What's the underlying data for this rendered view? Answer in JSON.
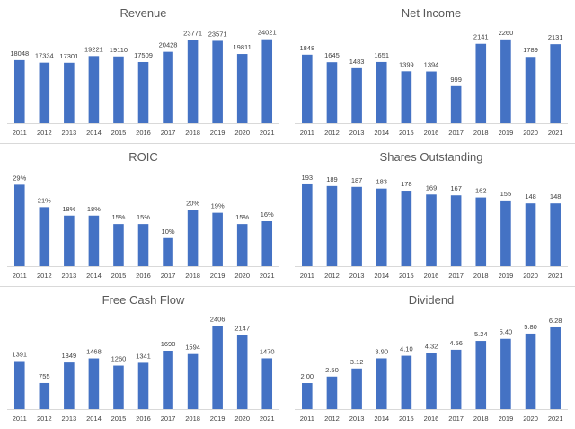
{
  "chart_data": [
    {
      "type": "bar",
      "title": "Revenue",
      "categories": [
        "2011",
        "2012",
        "2013",
        "2014",
        "2015",
        "2016",
        "2017",
        "2018",
        "2019",
        "2020",
        "2021"
      ],
      "values": [
        18048,
        17334,
        17301,
        19221,
        19110,
        17509,
        20428,
        23771,
        23571,
        19811,
        24021
      ],
      "labels": [
        "18048",
        "17334",
        "17301",
        "19221",
        "19110",
        "17509",
        "20428",
        "23771",
        "23571",
        "19811",
        "24021"
      ],
      "ylim": [
        0,
        26000
      ],
      "color": "#4472C4",
      "grid": false
    },
    {
      "type": "bar",
      "title": "Net Income",
      "categories": [
        "2011",
        "2012",
        "2013",
        "2014",
        "2015",
        "2016",
        "2017",
        "2018",
        "2019",
        "2020",
        "2021"
      ],
      "values": [
        1848,
        1645,
        1483,
        1651,
        1399,
        1394,
        999,
        2141,
        2260,
        1789,
        2131
      ],
      "labels": [
        "1848",
        "1645",
        "1483",
        "1651",
        "1399",
        "1394",
        "999",
        "2141",
        "2260",
        "1789",
        "2131"
      ],
      "ylim": [
        0,
        2450
      ],
      "color": "#4472C4",
      "grid": false
    },
    {
      "type": "bar",
      "title": "ROIC",
      "categories": [
        "2011",
        "2012",
        "2013",
        "2014",
        "2015",
        "2016",
        "2017",
        "2018",
        "2019",
        "2020",
        "2021"
      ],
      "values": [
        29,
        21,
        18,
        18,
        15,
        15,
        10,
        20,
        19,
        15,
        16
      ],
      "labels": [
        "29%",
        "21%",
        "18%",
        "18%",
        "15%",
        "15%",
        "10%",
        "20%",
        "19%",
        "15%",
        "16%"
      ],
      "ylim": [
        0,
        32
      ],
      "color": "#4472C4",
      "grid": false
    },
    {
      "type": "bar",
      "title": "Shares Outstanding",
      "categories": [
        "2011",
        "2012",
        "2013",
        "2014",
        "2015",
        "2016",
        "2017",
        "2018",
        "2019",
        "2020",
        "2021"
      ],
      "values": [
        193,
        189,
        187,
        183,
        178,
        169,
        167,
        162,
        155,
        148,
        148
      ],
      "labels": [
        "193",
        "189",
        "187",
        "183",
        "178",
        "169",
        "167",
        "162",
        "155",
        "148",
        "148"
      ],
      "ylim": [
        0,
        212
      ],
      "color": "#4472C4",
      "grid": false
    },
    {
      "type": "bar",
      "title": "Free Cash Flow",
      "categories": [
        "2011",
        "2012",
        "2013",
        "2014",
        "2015",
        "2016",
        "2017",
        "2018",
        "2019",
        "2020",
        "2021"
      ],
      "values": [
        1391,
        755,
        1349,
        1468,
        1260,
        1341,
        1690,
        1594,
        2406,
        2147,
        1470
      ],
      "labels": [
        "1391",
        "755",
        "1349",
        "1468",
        "1260",
        "1341",
        "1690",
        "1594",
        "2406",
        "2147",
        "1470"
      ],
      "ylim": [
        0,
        2600
      ],
      "color": "#4472C4",
      "grid": false
    },
    {
      "type": "bar",
      "title": "Dividend",
      "categories": [
        "2011",
        "2012",
        "2013",
        "2014",
        "2015",
        "2016",
        "2017",
        "2018",
        "2019",
        "2020",
        "2021"
      ],
      "values": [
        2.0,
        2.5,
        3.12,
        3.9,
        4.1,
        4.32,
        4.56,
        5.24,
        5.4,
        5.8,
        6.28
      ],
      "labels": [
        "2.00",
        "2.50",
        "3.12",
        "3.90",
        "4.10",
        "4.32",
        "4.56",
        "5.24",
        "5.40",
        "5.80",
        "6.28"
      ],
      "ylim": [
        0,
        6.9
      ],
      "color": "#4472C4",
      "grid": false
    }
  ]
}
